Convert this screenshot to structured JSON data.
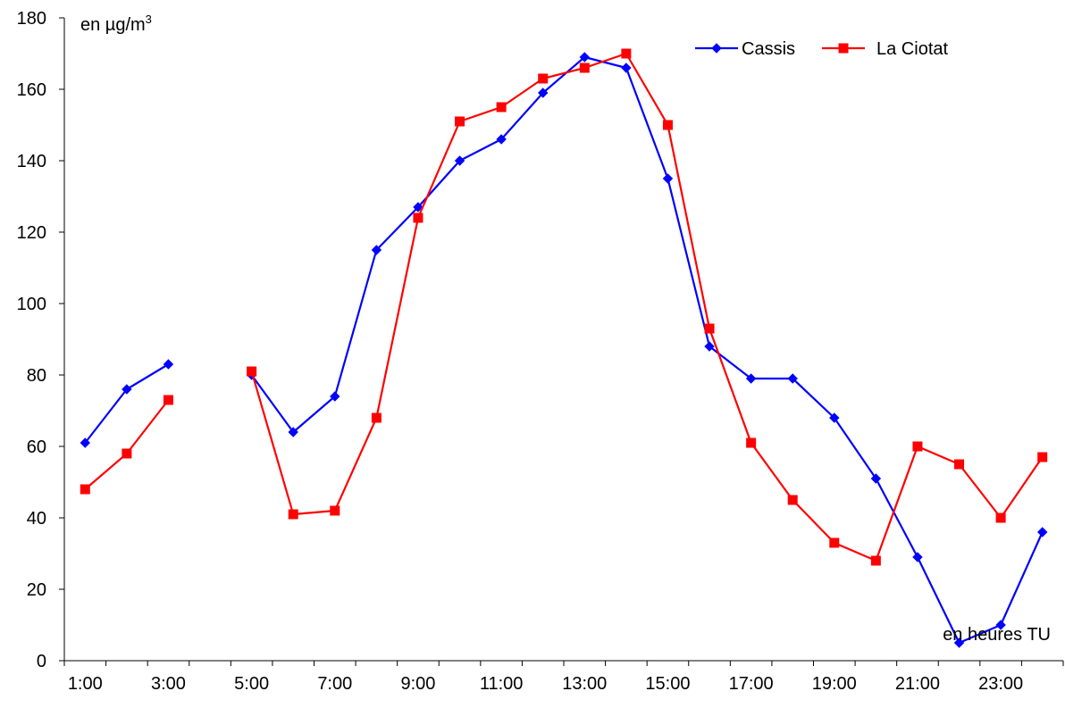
{
  "chart_data": {
    "type": "line",
    "title": "",
    "ylabel": "en µg/m",
    "ylabel_superscript": "3",
    "xlabel": "en heures TU",
    "ylim": [
      0,
      180
    ],
    "ytick_step": 20,
    "xlim": [
      0.5,
      24.5
    ],
    "xtick_labels": [
      {
        "x": 1,
        "label": "1:00"
      },
      {
        "x": 3,
        "label": "3:00"
      },
      {
        "x": 5,
        "label": "5:00"
      },
      {
        "x": 7,
        "label": "7:00"
      },
      {
        "x": 9,
        "label": "9:00"
      },
      {
        "x": 11,
        "label": "11:00"
      },
      {
        "x": 13,
        "label": "13:00"
      },
      {
        "x": 15,
        "label": "15:00"
      },
      {
        "x": 17,
        "label": "17:00"
      },
      {
        "x": 19,
        "label": "19:00"
      },
      {
        "x": 21,
        "label": "21:00"
      },
      {
        "x": 23,
        "label": "23:00"
      }
    ],
    "x": [
      1,
      2,
      3,
      4,
      5,
      6,
      7,
      8,
      9,
      10,
      11,
      12,
      13,
      14,
      15,
      16,
      17,
      18,
      19,
      20,
      21,
      22,
      23,
      24
    ],
    "series": [
      {
        "name": "Cassis",
        "color": "#0000ff",
        "marker": "diamond",
        "values": [
          61,
          76,
          83,
          null,
          80,
          64,
          74,
          115,
          127,
          140,
          146,
          159,
          169,
          166,
          135,
          88,
          79,
          79,
          68,
          51,
          29,
          5,
          10,
          36
        ]
      },
      {
        "name": "La Ciotat",
        "color": "#ff0000",
        "marker": "square",
        "values": [
          48,
          58,
          73,
          null,
          81,
          41,
          42,
          68,
          124,
          151,
          155,
          163,
          166,
          170,
          150,
          93,
          61,
          45,
          33,
          28,
          60,
          55,
          40,
          57
        ]
      }
    ],
    "legend_position": "top-right",
    "grid": false
  }
}
